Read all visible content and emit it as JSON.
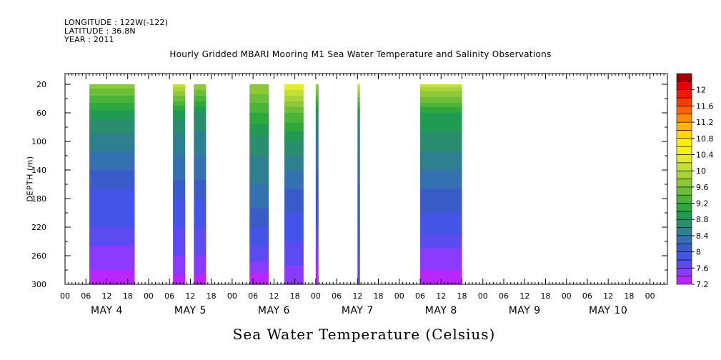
{
  "header": {
    "longitude": "LONGITUDE : 122W(-122)",
    "latitude": "LATITUDE : 36.8N",
    "year": "YEAR : 2011"
  },
  "chart_data": {
    "type": "heatmap",
    "title": "Hourly Gridded MBARI Mooring M1 Sea Water Temperature and Salinity Observations",
    "colorbar_title": "Sea Water Temperature (Celsius)",
    "ylabel": "DEPTH (m)",
    "y_inverted": true,
    "ylim": [
      300,
      5
    ],
    "y_ticks": [
      20,
      60,
      100,
      140,
      180,
      220,
      260,
      300
    ],
    "x_unit": "hours since May 3 00:00",
    "xlim": [
      0,
      173
    ],
    "x_hour_ticks": [
      0,
      6,
      12,
      18,
      24,
      30,
      36,
      42,
      48,
      54,
      60,
      66,
      72,
      78,
      84,
      90,
      96,
      102,
      108,
      114,
      120,
      126,
      132,
      138,
      144,
      150,
      156,
      162,
      168
    ],
    "x_hour_labels": [
      "00",
      "06",
      "12",
      "18",
      "00",
      "06",
      "12",
      "18",
      "00",
      "06",
      "12",
      "18",
      "00",
      "06",
      "12",
      "18",
      "00",
      "06",
      "12",
      "18",
      "00",
      "06",
      "12",
      "18",
      "00",
      "06",
      "12",
      "18",
      "00"
    ],
    "day_labels": [
      {
        "label": "MAY  4",
        "hour": 12
      },
      {
        "label": "MAY  5",
        "hour": 36
      },
      {
        "label": "MAY  6",
        "hour": 60
      },
      {
        "label": "MAY  7",
        "hour": 84
      },
      {
        "label": "MAY  8",
        "hour": 108
      },
      {
        "label": "MAY  9",
        "hour": 132
      },
      {
        "label": "MAY 10",
        "hour": 156
      }
    ],
    "colorbar_levels": [
      7.2,
      7.4,
      7.6,
      7.8,
      8,
      8.2,
      8.4,
      8.6,
      8.8,
      9,
      9.2,
      9.4,
      9.6,
      9.8,
      10,
      10.2,
      10.4,
      10.6,
      10.8,
      11,
      11.2,
      11.4,
      11.6,
      11.8,
      12,
      12.2
    ],
    "colorbar_labels": [
      7.2,
      7.6,
      8,
      8.4,
      8.8,
      9.2,
      9.6,
      10,
      10.4,
      10.8,
      11.2,
      11.6,
      12
    ],
    "colors": [
      "#ba26ff",
      "#8a3bff",
      "#5b4bf0",
      "#4354e6",
      "#3a5cc8",
      "#3570b0",
      "#2e7f8f",
      "#2a8d6d",
      "#219a54",
      "#2ea83c",
      "#4ab33a",
      "#6bbd3a",
      "#8cc83a",
      "#a8d43a",
      "#c5df35",
      "#e2ea2c",
      "#f2f01e",
      "#fff000",
      "#ffd800",
      "#ffb400",
      "#ff8c00",
      "#ff6400",
      "#ff3c00",
      "#ff1400",
      "#e00000",
      "#a00000"
    ],
    "data_segments": [
      {
        "start": 7,
        "end": 20,
        "profile": [
          [
            20,
            9.7
          ],
          [
            60,
            8.9
          ],
          [
            100,
            8.5
          ],
          [
            140,
            8.2
          ],
          [
            180,
            7.9
          ],
          [
            220,
            7.8
          ],
          [
            260,
            7.5
          ],
          [
            300,
            7.3
          ]
        ]
      },
      {
        "start": 31,
        "end": 34.5,
        "profile": [
          [
            20,
            10.1
          ],
          [
            60,
            8.9
          ],
          [
            100,
            8.5
          ],
          [
            140,
            8.3
          ],
          [
            180,
            8.0
          ],
          [
            220,
            7.8
          ],
          [
            260,
            7.6
          ],
          [
            300,
            7.3
          ]
        ]
      },
      {
        "start": 37,
        "end": 40.5,
        "profile": [
          [
            20,
            9.8
          ],
          [
            60,
            8.8
          ],
          [
            100,
            8.5
          ],
          [
            140,
            8.3
          ],
          [
            180,
            8.0
          ],
          [
            220,
            7.8
          ],
          [
            260,
            7.6
          ],
          [
            300,
            7.3
          ]
        ]
      },
      {
        "start": 53,
        "end": 58.5,
        "profile": [
          [
            20,
            9.8
          ],
          [
            60,
            9.2
          ],
          [
            100,
            8.7
          ],
          [
            140,
            8.5
          ],
          [
            180,
            8.3
          ],
          [
            220,
            8.0
          ],
          [
            260,
            7.7
          ],
          [
            300,
            7.2
          ]
        ]
      },
      {
        "start": 63,
        "end": 68.5,
        "profile": [
          [
            20,
            10.4
          ],
          [
            60,
            9.4
          ],
          [
            100,
            8.8
          ],
          [
            140,
            8.4
          ],
          [
            180,
            8.1
          ],
          [
            220,
            7.9
          ],
          [
            260,
            7.7
          ],
          [
            300,
            7.4
          ]
        ]
      },
      {
        "start": 72,
        "end": 72.8,
        "profile": [
          [
            20,
            9.8
          ],
          [
            60,
            8.8
          ],
          [
            100,
            8.4
          ],
          [
            140,
            8.2
          ],
          [
            180,
            8.0
          ],
          [
            220,
            7.8
          ],
          [
            260,
            7.5
          ],
          [
            300,
            7.2
          ]
        ]
      },
      {
        "start": 84,
        "end": 84.7,
        "profile": [
          [
            20,
            10.2
          ],
          [
            60,
            8.9
          ],
          [
            100,
            8.5
          ],
          [
            140,
            8.3
          ],
          [
            180,
            8.1
          ],
          [
            220,
            8.0
          ],
          [
            260,
            7.8
          ],
          [
            300,
            7.6
          ]
        ]
      },
      {
        "start": 102,
        "end": 114,
        "profile": [
          [
            20,
            10.1
          ],
          [
            60,
            9.0
          ],
          [
            100,
            8.7
          ],
          [
            140,
            8.4
          ],
          [
            180,
            8.1
          ],
          [
            220,
            7.9
          ],
          [
            260,
            7.5
          ],
          [
            300,
            7.3
          ]
        ]
      }
    ]
  }
}
